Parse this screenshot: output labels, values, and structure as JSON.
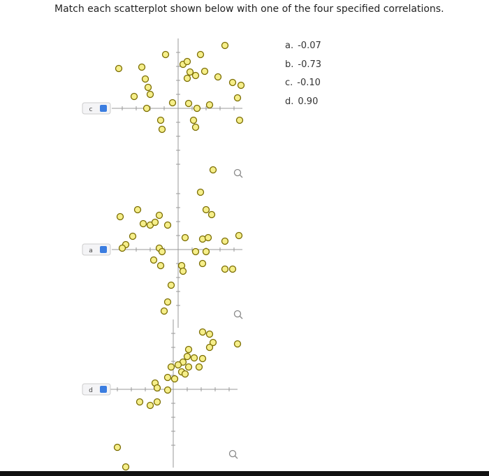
{
  "question": "Match each scatterplot shown below with one of the four specified correlations.",
  "options": [
    {
      "letter": "a.",
      "value": "-0.07"
    },
    {
      "letter": "b.",
      "value": "-0.73"
    },
    {
      "letter": "c.",
      "value": "-0.10"
    },
    {
      "letter": "d.",
      "value": "0.90"
    }
  ],
  "plots": [
    {
      "dropdown": "c",
      "x": [
        -4.25,
        -2.6,
        -0.9,
        1.6,
        3.35,
        0.35,
        0.65,
        0.85,
        0.65,
        1.25,
        1.9,
        2.85,
        3.9,
        4.5,
        4.25,
        -3.15,
        -2.35,
        -2.15,
        -2,
        -0.4,
        0.75,
        1.35,
        2.25,
        -2.25,
        -1.25,
        -1.15,
        1.1,
        1.25,
        4.4,
        2.5
      ],
      "y": [
        2.85,
        2.95,
        3.85,
        3.85,
        4.5,
        3.15,
        3.35,
        2.6,
        2.15,
        2.35,
        2.65,
        2.25,
        1.85,
        1.65,
        0.75,
        0.85,
        2.1,
        1.5,
        1,
        0.4,
        0.35,
        0,
        0.25,
        0,
        -0.85,
        -1.5,
        -0.85,
        -1.35,
        -0.85,
        -4.4
      ]
    },
    {
      "dropdown": "a",
      "x": [
        1.6,
        2,
        2.4,
        -4.15,
        -2.9,
        -1.35,
        -2.5,
        -2,
        -1.65,
        -0.75,
        -3.25,
        0.5,
        1.75,
        2.15,
        3.35,
        4.35,
        -3.75,
        -4,
        -1.35,
        -1.15,
        1.25,
        2,
        -1.75,
        -1.25,
        0.25,
        0.35,
        1.75,
        3.35,
        3.9,
        -0.5,
        -0.75,
        -1
      ],
      "y": [
        4.1,
        2.85,
        2.5,
        2.35,
        2.85,
        2.45,
        1.85,
        1.75,
        1.95,
        1.75,
        0.95,
        0.85,
        0.75,
        0.85,
        0.6,
        1,
        0.35,
        0.1,
        0.1,
        -0.15,
        -0.15,
        -0.15,
        -0.75,
        -1.15,
        -1.15,
        -1.55,
        -1,
        -1.4,
        -1.4,
        -2.55,
        -3.75,
        -4.4
      ]
    },
    {
      "dropdown": "d",
      "x": [
        2.1,
        2.6,
        2.85,
        2.6,
        4.6,
        1.1,
        1,
        1.5,
        2.1,
        0.7,
        1.85,
        -0.15,
        0.35,
        1.1,
        0.6,
        0.85,
        -0.4,
        0.1,
        -1.3,
        -1.15,
        -0.4,
        -2.4,
        -1.65,
        -1.15,
        -4,
        -3.4
      ],
      "y": [
        4.1,
        3.95,
        3.35,
        3,
        3.25,
        2.85,
        2.35,
        2.25,
        2.2,
        1.95,
        1.6,
        1.6,
        1.75,
        1.6,
        1.25,
        1.1,
        0.85,
        0.75,
        0.45,
        0.1,
        -0.05,
        -0.9,
        -1.15,
        -0.9,
        -4.15,
        -5.55
      ]
    }
  ]
}
